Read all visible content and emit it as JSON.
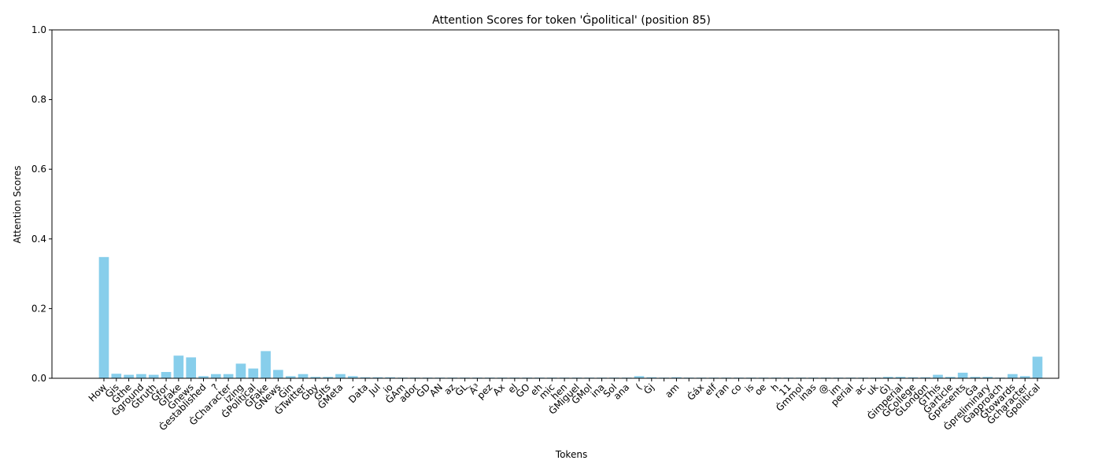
{
  "chart_data": {
    "type": "bar",
    "title": "Attention Scores for token 'Ġpolitical' (position 85)",
    "x_label": "Tokens",
    "y_label": "Attention Scores",
    "color": "#87ceeb",
    "categories": [
      "How",
      "Ġis",
      "Ġthe",
      "Ġground",
      "Ġtruth",
      "Ġfor",
      "Ġfake",
      "Ġnews",
      "Ġestablished",
      "?",
      "ĠCharacter",
      "izing",
      "ĠPolitical",
      "ĠFake",
      "ĠNews",
      "Ġin",
      "ĠTwitter",
      "Ġby",
      "ĠIts",
      "ĠMeta",
      "-",
      "Data",
      "Jul",
      "io",
      "ĠAm",
      "ador",
      "ĠD",
      "AN",
      "az",
      "ĠL",
      "Ã³",
      "pez",
      "Ax",
      "el",
      "ĠO",
      "eh",
      "mic",
      "hen",
      "ĠMiguel",
      "ĠMol",
      "ina",
      "Sol",
      "ana",
      "(",
      "Ġj",
      null,
      "am",
      null,
      "Ġáx",
      "elf",
      "ran",
      "co",
      "is",
      "oe",
      "h",
      "11",
      "Ġmmol",
      "inas",
      "@",
      "im",
      "perial",
      "ac",
      "uk",
      "Ġ)",
      "Ġimperial",
      "ĠCollege",
      "ĠLondon",
      "ĠThis",
      "Ġarticle",
      "Ġpresents",
      "Ġa",
      "Ġpreliminary",
      "Ġapproach",
      "Ġtowards",
      "Ġcharacter",
      "Ġpolitical"
    ],
    "values": [
      0.348,
      0.013,
      0.01,
      0.012,
      0.01,
      0.018,
      0.065,
      0.06,
      0.006,
      0.012,
      0.012,
      0.042,
      0.028,
      0.078,
      0.024,
      0.006,
      0.012,
      0.004,
      0.004,
      0.012,
      0.006,
      0.003,
      0.003,
      0.003,
      0.002,
      0.002,
      0.002,
      0.002,
      0.002,
      0.002,
      0.002,
      0.002,
      0.002,
      0.002,
      0.002,
      0.002,
      0.002,
      0.002,
      0.002,
      0.002,
      0.002,
      0.002,
      0.002,
      0.006,
      0.003,
      0.002,
      0.003,
      0.002,
      0.002,
      0.002,
      0.002,
      0.002,
      0.002,
      0.002,
      0.002,
      0.002,
      0.002,
      0.002,
      0.002,
      0.002,
      0.002,
      0.002,
      0.002,
      0.004,
      0.004,
      0.003,
      0.003,
      0.01,
      0.004,
      0.016,
      0.004,
      0.004,
      0.002,
      0.012,
      0.006,
      0.062
    ],
    "ylim": [
      0,
      1
    ],
    "yticks": [
      {
        "value": 0,
        "label": "0.0"
      },
      {
        "value": 0.2,
        "label": "0.2"
      },
      {
        "value": 0.4,
        "label": "0.4"
      },
      {
        "value": 0.6,
        "label": "0.6"
      },
      {
        "value": 0.8,
        "label": "0.8"
      },
      {
        "value": 1,
        "label": "1.0"
      }
    ]
  }
}
